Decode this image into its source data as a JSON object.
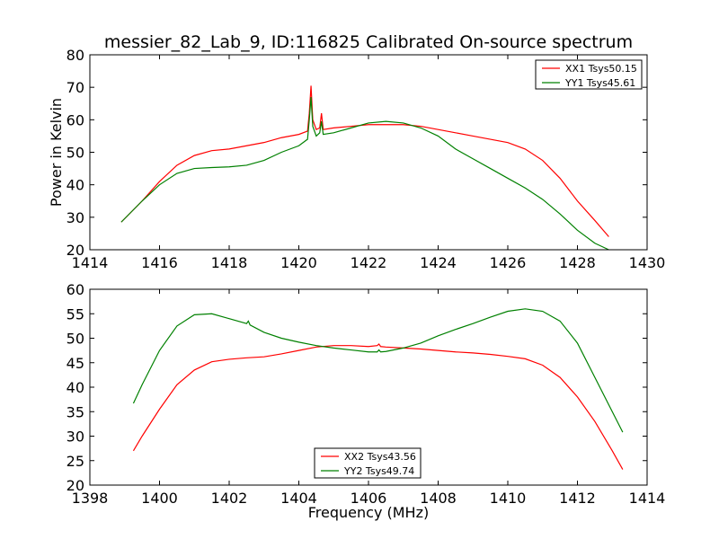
{
  "title": "messier_82_Lab_9, ID:116825 Calibrated On-source spectrum",
  "chart_data": [
    {
      "type": "line",
      "title": "messier_82_Lab_9, ID:116825 Calibrated On-source spectrum",
      "xlabel": "",
      "ylabel": "Power in Kelvin",
      "xlim": [
        1414,
        1430
      ],
      "ylim": [
        20,
        80
      ],
      "xticks": [
        "1414",
        "1416",
        "1418",
        "1420",
        "1422",
        "1424",
        "1426",
        "1428",
        "1430"
      ],
      "yticks": [
        "20",
        "30",
        "40",
        "50",
        "60",
        "70",
        "80"
      ],
      "legend_position": "upper right",
      "series": [
        {
          "name": "XX1 Tsys50.15",
          "color": "#ff0000",
          "points": [
            [
              1414.9,
              28.5
            ],
            [
              1415.5,
              35
            ],
            [
              1416,
              41
            ],
            [
              1416.5,
              46
            ],
            [
              1417,
              49
            ],
            [
              1417.5,
              50.5
            ],
            [
              1418,
              51
            ],
            [
              1418.5,
              52
            ],
            [
              1419,
              53
            ],
            [
              1419.5,
              54.5
            ],
            [
              1420,
              55.5
            ],
            [
              1420.25,
              56.5
            ],
            [
              1420.3,
              62
            ],
            [
              1420.35,
              70.5
            ],
            [
              1420.4,
              60
            ],
            [
              1420.5,
              57
            ],
            [
              1420.6,
              57.5
            ],
            [
              1420.65,
              62
            ],
            [
              1420.7,
              57
            ],
            [
              1421,
              57.5
            ],
            [
              1421.5,
              58
            ],
            [
              1422,
              58.5
            ],
            [
              1422.5,
              58.5
            ],
            [
              1423,
              58.5
            ],
            [
              1423.5,
              58
            ],
            [
              1424,
              57
            ],
            [
              1424.5,
              56
            ],
            [
              1425,
              55
            ],
            [
              1425.5,
              54
            ],
            [
              1426,
              53
            ],
            [
              1426.5,
              51
            ],
            [
              1427,
              47.5
            ],
            [
              1427.5,
              42
            ],
            [
              1428,
              35
            ],
            [
              1428.5,
              29
            ],
            [
              1428.9,
              24
            ]
          ]
        },
        {
          "name": "YY1 Tsys45.61",
          "color": "#008000",
          "points": [
            [
              1414.9,
              28.5
            ],
            [
              1415.5,
              35
            ],
            [
              1416,
              40
            ],
            [
              1416.5,
              43.5
            ],
            [
              1417,
              45
            ],
            [
              1417.5,
              45.3
            ],
            [
              1418,
              45.5
            ],
            [
              1418.5,
              46
            ],
            [
              1419,
              47.5
            ],
            [
              1419.5,
              50
            ],
            [
              1420,
              52
            ],
            [
              1420.25,
              54
            ],
            [
              1420.3,
              60
            ],
            [
              1420.35,
              67
            ],
            [
              1420.4,
              58
            ],
            [
              1420.5,
              55
            ],
            [
              1420.6,
              56
            ],
            [
              1420.65,
              59.5
            ],
            [
              1420.7,
              55.5
            ],
            [
              1421,
              56
            ],
            [
              1421.5,
              57.5
            ],
            [
              1422,
              59
            ],
            [
              1422.5,
              59.5
            ],
            [
              1423,
              59
            ],
            [
              1423.5,
              57.5
            ],
            [
              1424,
              55
            ],
            [
              1424.5,
              51
            ],
            [
              1425,
              48
            ],
            [
              1425.5,
              45
            ],
            [
              1426,
              42
            ],
            [
              1426.5,
              39
            ],
            [
              1427,
              35.5
            ],
            [
              1427.5,
              31
            ],
            [
              1428,
              26
            ],
            [
              1428.5,
              22
            ],
            [
              1428.9,
              20
            ]
          ]
        }
      ]
    },
    {
      "type": "line",
      "title": "",
      "xlabel": "Frequency (MHz)",
      "ylabel": "",
      "xlim": [
        1398,
        1414
      ],
      "ylim": [
        20,
        60
      ],
      "xticks": [
        "1398",
        "1400",
        "1402",
        "1404",
        "1406",
        "1408",
        "1410",
        "1412",
        "1414"
      ],
      "yticks": [
        "20",
        "25",
        "30",
        "35",
        "40",
        "45",
        "50",
        "55",
        "60"
      ],
      "legend_position": "lower center",
      "series": [
        {
          "name": "XX2 Tsys43.56",
          "color": "#ff0000",
          "points": [
            [
              1399.25,
              27
            ],
            [
              1399.5,
              30
            ],
            [
              1400,
              35.5
            ],
            [
              1400.5,
              40.5
            ],
            [
              1401,
              43.5
            ],
            [
              1401.5,
              45.2
            ],
            [
              1402,
              45.7
            ],
            [
              1402.5,
              46
            ],
            [
              1403,
              46.2
            ],
            [
              1403.5,
              46.8
            ],
            [
              1404,
              47.5
            ],
            [
              1404.5,
              48.2
            ],
            [
              1405,
              48.5
            ],
            [
              1405.5,
              48.5
            ],
            [
              1406,
              48.3
            ],
            [
              1406.25,
              48.5
            ],
            [
              1406.3,
              48.8
            ],
            [
              1406.35,
              48.3
            ],
            [
              1406.5,
              48.2
            ],
            [
              1407,
              48
            ],
            [
              1407.5,
              47.8
            ],
            [
              1408,
              47.5
            ],
            [
              1408.5,
              47.2
            ],
            [
              1409,
              47
            ],
            [
              1409.5,
              46.7
            ],
            [
              1410,
              46.3
            ],
            [
              1410.5,
              45.8
            ],
            [
              1411,
              44.5
            ],
            [
              1411.5,
              42
            ],
            [
              1412,
              38
            ],
            [
              1412.5,
              33
            ],
            [
              1413,
              27
            ],
            [
              1413.3,
              23.2
            ]
          ]
        },
        {
          "name": "YY2 Tsys49.74",
          "color": "#008000",
          "points": [
            [
              1399.25,
              36.7
            ],
            [
              1399.5,
              40.5
            ],
            [
              1400,
              47.5
            ],
            [
              1400.5,
              52.5
            ],
            [
              1401,
              54.8
            ],
            [
              1401.5,
              55
            ],
            [
              1402,
              54
            ],
            [
              1402.5,
              53
            ],
            [
              1402.55,
              53.5
            ],
            [
              1402.6,
              52.7
            ],
            [
              1403,
              51.2
            ],
            [
              1403.5,
              50
            ],
            [
              1404,
              49.2
            ],
            [
              1404.5,
              48.5
            ],
            [
              1405,
              48
            ],
            [
              1405.5,
              47.6
            ],
            [
              1406,
              47.2
            ],
            [
              1406.25,
              47.2
            ],
            [
              1406.3,
              47.6
            ],
            [
              1406.35,
              47.2
            ],
            [
              1406.5,
              47.3
            ],
            [
              1407,
              48
            ],
            [
              1407.5,
              49
            ],
            [
              1408,
              50.5
            ],
            [
              1408.5,
              51.8
            ],
            [
              1409,
              53
            ],
            [
              1409.5,
              54.3
            ],
            [
              1410,
              55.5
            ],
            [
              1410.5,
              56
            ],
            [
              1411,
              55.5
            ],
            [
              1411.5,
              53.5
            ],
            [
              1412,
              49
            ],
            [
              1412.5,
              42
            ],
            [
              1413,
              35
            ],
            [
              1413.3,
              30.8
            ]
          ]
        }
      ]
    }
  ]
}
